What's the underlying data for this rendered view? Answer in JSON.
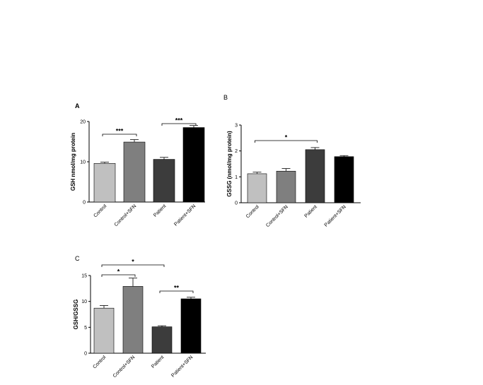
{
  "chart_data": [
    {
      "panel": "A",
      "type": "bar",
      "categories": [
        "Control",
        "Control+SFN",
        "Patient",
        "Patient+SFN"
      ],
      "values": [
        9.6,
        14.9,
        10.6,
        18.5
      ],
      "errors": [
        0.3,
        0.6,
        0.5,
        0.5
      ],
      "colors": [
        "#c0c0c0",
        "#7f7f7f",
        "#3c3c3c",
        "#000000"
      ],
      "ylabel": "GSH nmol/mg protein",
      "ylim": [
        0,
        20
      ],
      "yticks": [
        0,
        10,
        20
      ],
      "significance": [
        {
          "from": 0,
          "to": 1,
          "label": "***"
        },
        {
          "from": 2,
          "to": 3,
          "label": "***"
        }
      ]
    },
    {
      "panel": "B",
      "type": "bar",
      "categories": [
        "Control",
        "Control+SFN",
        "Patient",
        "Patient+SFN"
      ],
      "values": [
        1.12,
        1.22,
        2.05,
        1.78
      ],
      "errors": [
        0.06,
        0.1,
        0.08,
        0.04
      ],
      "colors": [
        "#c0c0c0",
        "#7f7f7f",
        "#3c3c3c",
        "#000000"
      ],
      "ylabel": "GSSG (nmol/mg protein)",
      "ylim": [
        0,
        3
      ],
      "yticks": [
        0,
        1,
        2,
        3
      ],
      "significance": [
        {
          "from": 0,
          "to": 2,
          "label": "*"
        }
      ]
    },
    {
      "panel": "C",
      "type": "bar",
      "categories": [
        "Control",
        "Control+SFN",
        "Patient",
        "Patient+SFN"
      ],
      "values": [
        8.7,
        12.9,
        5.1,
        10.5
      ],
      "errors": [
        0.5,
        1.6,
        0.2,
        0.3
      ],
      "colors": [
        "#c0c0c0",
        "#7f7f7f",
        "#3c3c3c",
        "#000000"
      ],
      "ylabel": "GSH/GSSG",
      "ylim": [
        0,
        15
      ],
      "yticks": [
        0,
        5,
        10,
        15
      ],
      "significance": [
        {
          "from": 0,
          "to": 1,
          "label": "*"
        },
        {
          "from": 0,
          "to": 2,
          "label": "*"
        },
        {
          "from": 2,
          "to": 3,
          "label": "**"
        }
      ]
    }
  ]
}
